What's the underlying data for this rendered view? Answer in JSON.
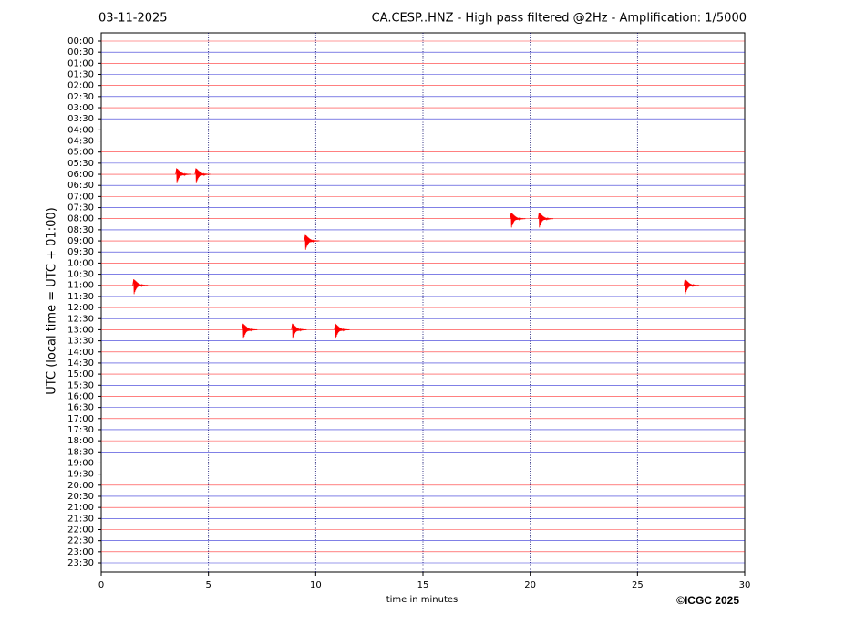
{
  "chart_data": {
    "type": "helicorder",
    "date": "03-11-2025",
    "title": "CA.CESP..HNZ - High pass filtered @2Hz - Amplification: 1/5000",
    "y_label": "UTC (local time = UTC + 01:00)",
    "x_label": "time in minutes",
    "credit": "©ICGC 2025",
    "rows": [
      "00:00",
      "00:30",
      "01:00",
      "01:30",
      "02:00",
      "02:30",
      "03:00",
      "03:30",
      "04:00",
      "04:30",
      "05:00",
      "05:30",
      "06:00",
      "06:30",
      "07:00",
      "07:30",
      "08:00",
      "08:30",
      "09:00",
      "09:30",
      "10:00",
      "10:30",
      "11:00",
      "11:30",
      "12:00",
      "12:30",
      "13:00",
      "13:30",
      "14:00",
      "14:30",
      "15:00",
      "15:30",
      "16:00",
      "16:30",
      "17:00",
      "17:30",
      "18:00",
      "18:30",
      "19:00",
      "19:30",
      "20:00",
      "20:30",
      "21:00",
      "21:30",
      "22:00",
      "22:30",
      "23:00",
      "23:30"
    ],
    "colors": [
      "#ff0000",
      "#0000cc"
    ],
    "xlim": [
      0,
      30
    ],
    "xticks": [
      0,
      5,
      10,
      15,
      20,
      25,
      30
    ],
    "grid": true,
    "events": [
      {
        "row": 12,
        "minute": 3.6
      },
      {
        "row": 12,
        "minute": 4.5
      },
      {
        "row": 16,
        "minute": 19.2
      },
      {
        "row": 16,
        "minute": 20.5
      },
      {
        "row": 18,
        "minute": 9.6
      },
      {
        "row": 22,
        "minute": 1.6
      },
      {
        "row": 22,
        "minute": 27.3
      },
      {
        "row": 26,
        "minute": 6.7
      },
      {
        "row": 26,
        "minute": 9.0
      },
      {
        "row": 26,
        "minute": 11.0
      }
    ]
  }
}
